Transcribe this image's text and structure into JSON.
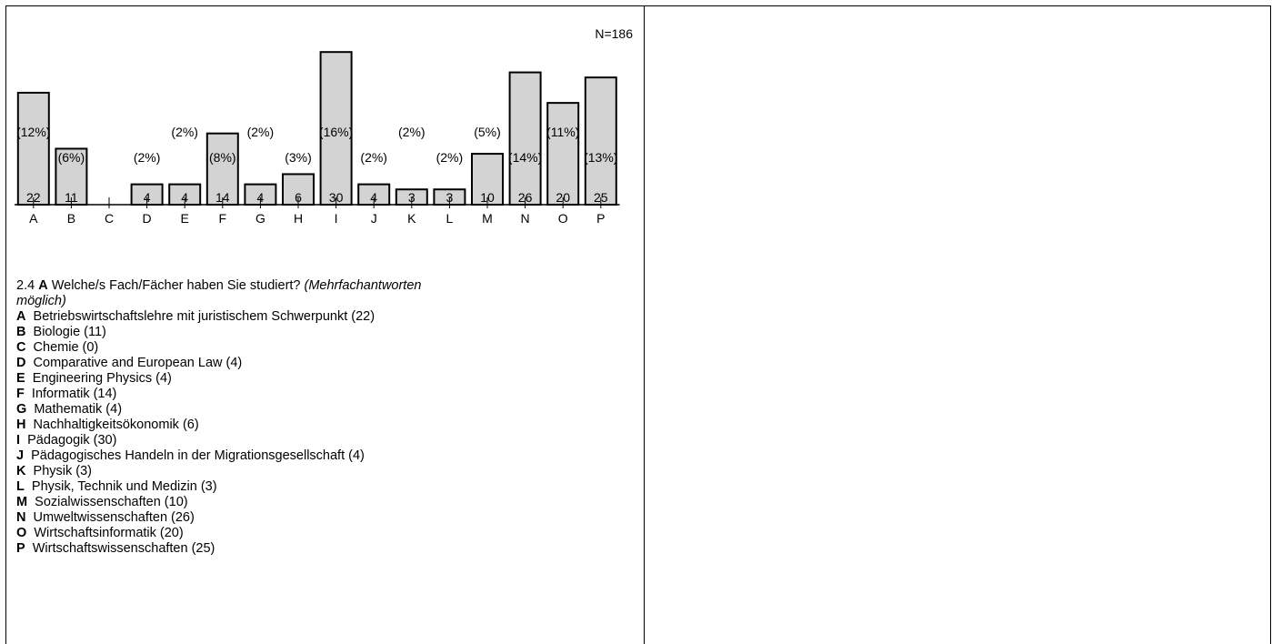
{
  "chart_data": {
    "type": "bar",
    "annotation": "N=186",
    "categories": [
      "A",
      "B",
      "C",
      "D",
      "E",
      "F",
      "G",
      "H",
      "I",
      "J",
      "K",
      "L",
      "M",
      "N",
      "O",
      "P"
    ],
    "values": [
      22,
      11,
      0,
      4,
      4,
      14,
      4,
      6,
      30,
      4,
      3,
      3,
      10,
      26,
      20,
      25
    ],
    "percent_labels": [
      "(12%)",
      "(6%)",
      "",
      "(2%)",
      "(2%)",
      "(8%)",
      "(2%)",
      "(3%)",
      "(16%)",
      "(2%)",
      "(2%)",
      "(2%)",
      "(5%)",
      "(14%)",
      "(11%)",
      "(13%)"
    ],
    "value_labels": [
      "22",
      "11",
      "",
      "4",
      "4",
      "14",
      "4",
      "6",
      "30",
      "4",
      "3",
      "3",
      "10",
      "26",
      "20",
      "25"
    ],
    "ylim": [
      0,
      32
    ],
    "bar_color": "#d3d3d3",
    "grid": false,
    "legend": "none"
  },
  "question": {
    "number": "2.4",
    "letter": "A",
    "text": "Welche/s Fach/Fächer haben Sie studiert?",
    "note_line1": "(Mehrfachantworten",
    "note_line2": "möglich)"
  },
  "legend_items": [
    {
      "letter": "A",
      "text": "Betriebswirtschaftslehre mit juristischem Schwerpunkt (22)"
    },
    {
      "letter": "B",
      "text": "Biologie (11)"
    },
    {
      "letter": "C",
      "text": "Chemie (0)"
    },
    {
      "letter": "D",
      "text": "Comparative and European Law (4)"
    },
    {
      "letter": "E",
      "text": "Engineering Physics (4)"
    },
    {
      "letter": "F",
      "text": "Informatik (14)"
    },
    {
      "letter": "G",
      "text": "Mathematik (4)"
    },
    {
      "letter": "H",
      "text": "Nachhaltigkeitsökonomik (6)"
    },
    {
      "letter": "I",
      "text": "Pädagogik (30)"
    },
    {
      "letter": "J",
      "text": "Pädagogisches Handeln in der Migrationsgesellschaft (4)"
    },
    {
      "letter": "K",
      "text": "Physik (3)"
    },
    {
      "letter": "L",
      "text": "Physik, Technik und Medizin (3)"
    },
    {
      "letter": "M",
      "text": "Sozialwissenschaften (10)"
    },
    {
      "letter": "N",
      "text": "Umweltwissenschaften (26)"
    },
    {
      "letter": "O",
      "text": "Wirtschaftsinformatik (20)"
    },
    {
      "letter": "P",
      "text": "Wirtschaftswissenschaften (25)"
    }
  ]
}
